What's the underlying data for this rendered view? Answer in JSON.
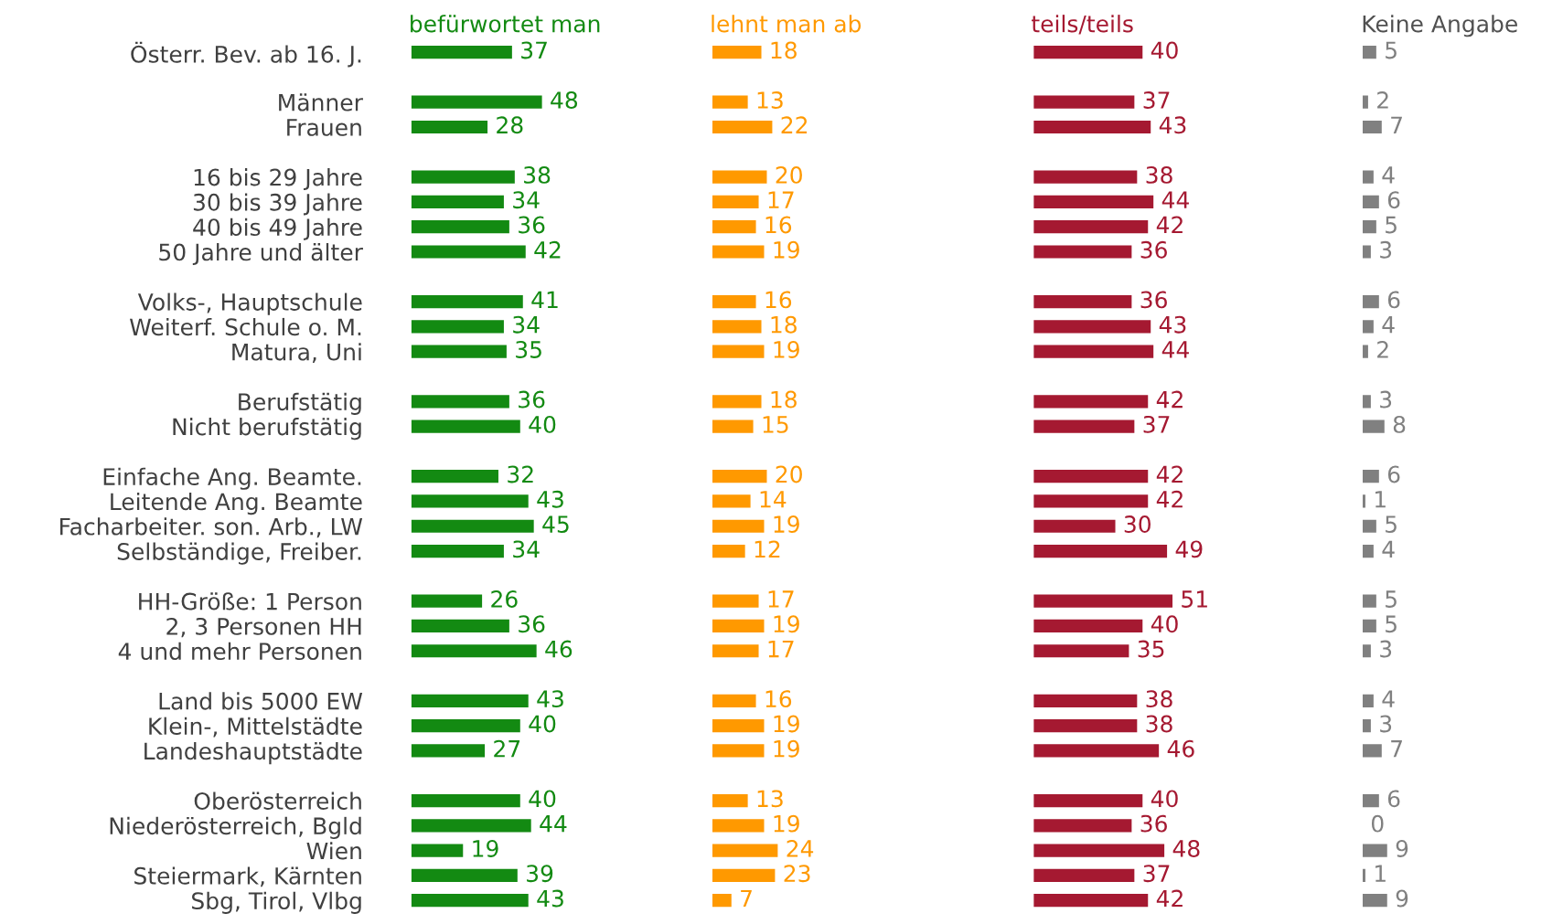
{
  "chart_data": [
    {
      "type": "bar",
      "orientation": "horizontal",
      "title": "befürwortet man",
      "data_labels": true,
      "tick_labels": "y",
      "categories": [
        "Österr. Bev. ab 16. J.",
        null,
        "Männer",
        "Frauen",
        null,
        "16 bis 29 Jahre",
        "30 bis 39 Jahre",
        "40 bis 49 Jahre",
        "50 Jahre und älter",
        null,
        "Volks-, Hauptschule",
        "Weiterf. Schule o. M.",
        "Matura, Uni",
        null,
        "Berufstätig",
        "Nicht berufstätig",
        null,
        "Einfache Ang. Beamte.",
        "Leitende Ang. Beamte",
        "Facharbeiter. son. Arb., LW",
        "Selbständige, Freiber.",
        null,
        "HH-Größe: 1 Person",
        "2, 3 Personen HH",
        "4 und mehr Personen",
        null,
        "Land bis 5000 EW",
        "Klein-, Mittelstädte",
        "Landeshauptstädte",
        null,
        "Oberösterreich",
        "Niederösterreich, Bgld",
        "Wien",
        "Steiermark, Kärnten",
        "Sbg, Tirol, Vlbg"
      ],
      "series": [
        {
          "color": "#138a12",
          "values": [
            37,
            null,
            48,
            28,
            null,
            38,
            34,
            36,
            42,
            null,
            41,
            34,
            35,
            null,
            36,
            40,
            null,
            32,
            43,
            45,
            34,
            null,
            26,
            36,
            46,
            null,
            43,
            40,
            27,
            null,
            40,
            44,
            19,
            39,
            43
          ]
        }
      ]
    },
    {
      "type": "bar",
      "orientation": "horizontal",
      "title": "lehnt man ab",
      "data_labels": true,
      "series": [
        {
          "color": "#ff9900",
          "values": [
            18,
            null,
            13,
            22,
            null,
            20,
            17,
            16,
            19,
            null,
            16,
            18,
            19,
            null,
            18,
            15,
            null,
            20,
            14,
            19,
            12,
            null,
            17,
            19,
            17,
            null,
            16,
            19,
            19,
            null,
            13,
            19,
            24,
            23,
            7
          ]
        }
      ]
    },
    {
      "type": "bar",
      "orientation": "horizontal",
      "title": "teils/teils",
      "data_labels": true,
      "series": [
        {
          "color": "#a51931",
          "values": [
            40,
            null,
            37,
            43,
            null,
            38,
            44,
            42,
            36,
            null,
            36,
            43,
            44,
            null,
            42,
            37,
            null,
            42,
            42,
            30,
            49,
            null,
            51,
            40,
            35,
            null,
            38,
            38,
            46,
            null,
            40,
            36,
            48,
            37,
            42
          ]
        }
      ]
    },
    {
      "type": "bar",
      "orientation": "horizontal",
      "title": "Keine Angabe",
      "data_labels": true,
      "series": [
        {
          "color": "#808080",
          "values": [
            5,
            null,
            2,
            7,
            null,
            4,
            6,
            5,
            3,
            null,
            6,
            4,
            2,
            null,
            3,
            8,
            null,
            6,
            1,
            5,
            4,
            null,
            5,
            5,
            3,
            null,
            4,
            3,
            7,
            null,
            6,
            0,
            9,
            1,
            9
          ]
        }
      ]
    }
  ]
}
